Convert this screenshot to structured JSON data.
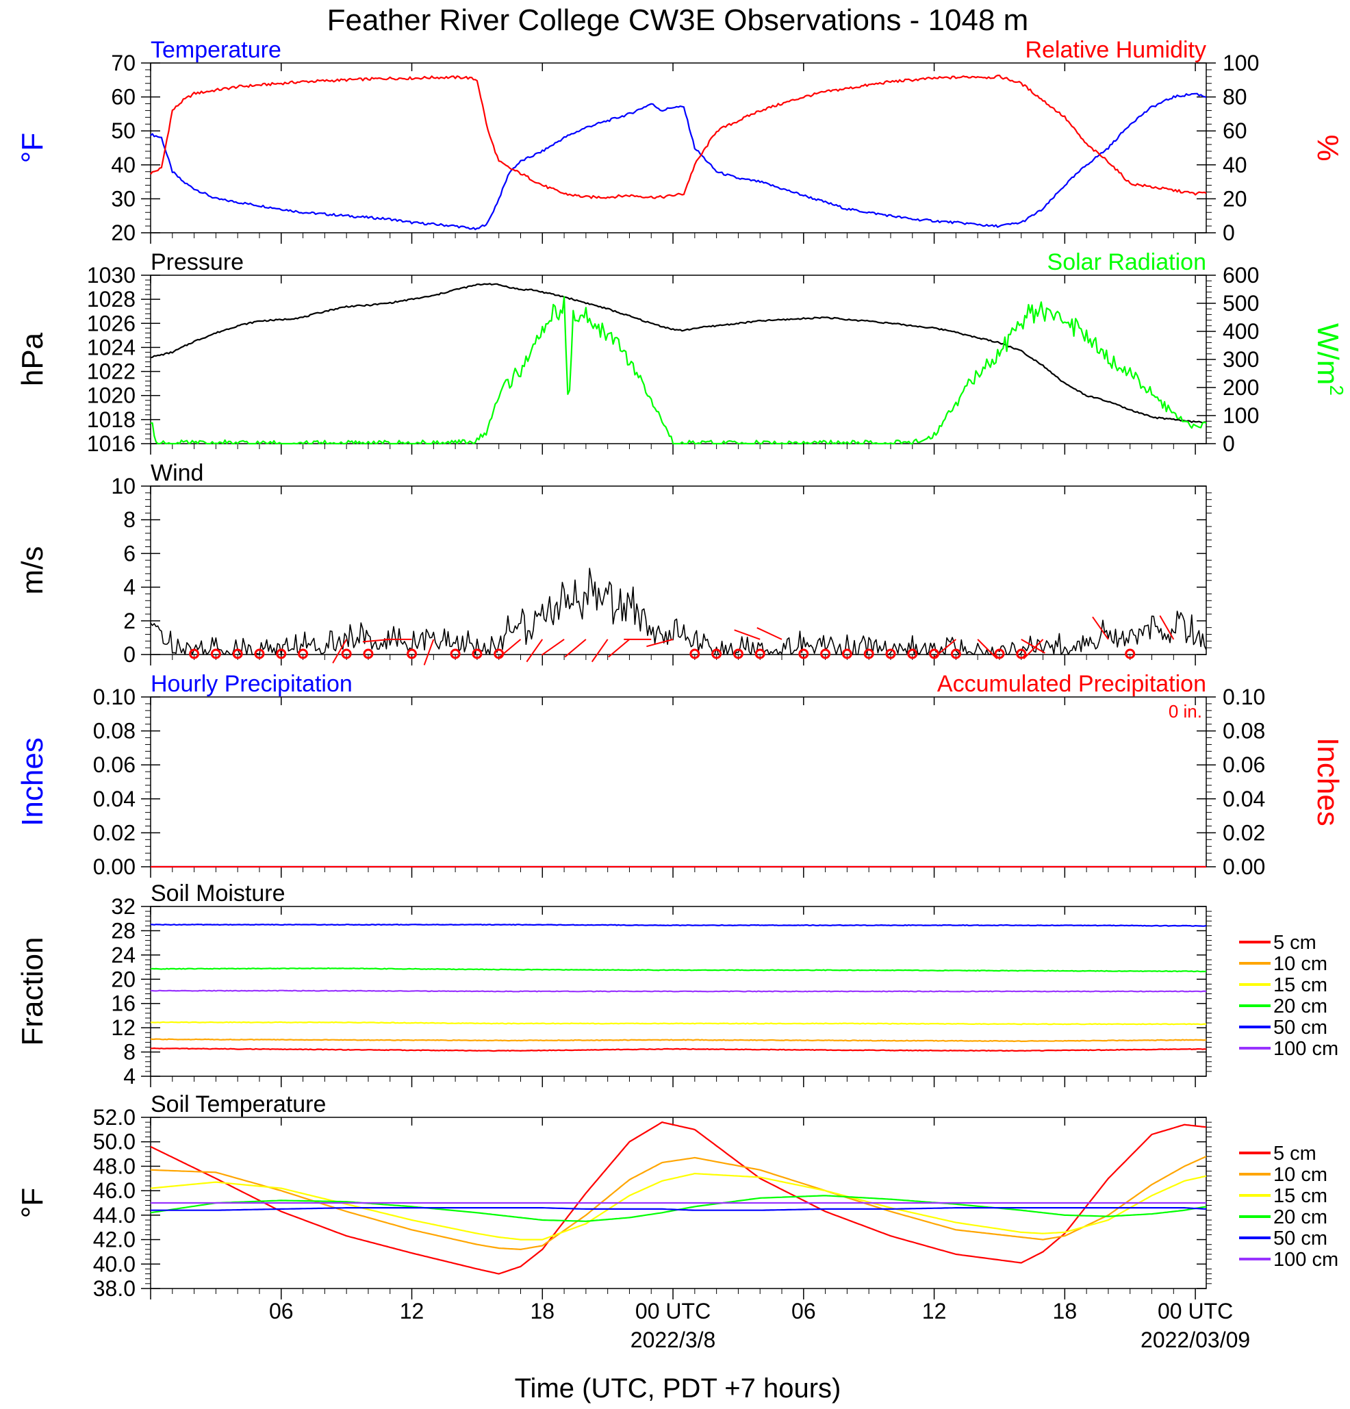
{
  "figure": {
    "title": "Feather River College CW3E Observations - 1048 m",
    "xlabel": "Time (UTC, PDT +7 hours)",
    "x_tick_labels": [
      "06",
      "12",
      "18",
      "00 UTC",
      "06",
      "12",
      "18",
      "00 UTC"
    ],
    "date_labels": [
      {
        "text": "2022/3/8",
        "under": "00 UTC #1"
      },
      {
        "text": "2022/03/09",
        "under": "00 UTC #2"
      }
    ]
  },
  "chart_data": [
    {
      "id": "temperature_rh",
      "type": "line",
      "titles": {
        "left": "Temperature",
        "right": "Relative Humidity"
      },
      "left_axis": {
        "label": "°F",
        "range": [
          20,
          70
        ],
        "ticks": [
          "20",
          "30",
          "40",
          "50",
          "60",
          "70"
        ],
        "color": "#0000ff"
      },
      "right_axis": {
        "label": "%",
        "range": [
          0,
          100
        ],
        "ticks": [
          "0",
          "20",
          "40",
          "60",
          "80",
          "100"
        ],
        "color": "#ff0000"
      },
      "x_hours_utc": [
        0,
        0.5,
        1,
        1.5,
        2,
        3,
        4,
        5,
        6,
        7,
        8,
        9,
        10,
        11,
        12,
        13,
        14,
        14.5,
        15,
        15.5,
        16,
        16.5,
        17,
        18,
        19,
        20,
        21,
        22,
        23,
        23.5,
        24,
        24.5,
        25,
        26,
        27,
        28,
        29,
        30,
        31,
        32,
        33,
        34,
        35,
        36,
        37,
        38,
        38.5,
        39,
        40,
        41,
        42,
        43,
        44,
        45,
        46,
        47,
        48,
        48.5
      ],
      "series": [
        {
          "name": "Temperature",
          "axis": "left",
          "color": "#0000ff",
          "values": [
            49,
            48,
            38,
            35,
            33,
            30,
            29,
            28,
            27,
            26,
            25.5,
            25,
            24.5,
            24,
            23,
            22.5,
            22,
            21.5,
            21,
            23,
            30,
            38,
            41,
            44,
            48,
            51,
            53,
            55,
            58,
            56,
            57,
            57,
            45,
            38,
            36,
            35,
            33,
            31,
            29,
            27,
            26,
            25,
            24,
            23.5,
            23,
            22.5,
            22,
            22,
            23,
            27,
            34,
            40,
            45,
            52,
            57,
            60,
            61,
            60
          ]
        },
        {
          "name": "Relative Humidity",
          "axis": "right",
          "color": "#ff0000",
          "values": [
            35,
            38,
            72,
            78,
            82,
            84,
            86,
            87,
            88,
            89,
            89.5,
            90,
            90.5,
            91,
            91,
            91.5,
            91.5,
            91.5,
            90,
            60,
            42,
            38,
            35,
            28,
            23,
            21,
            21,
            22,
            21,
            21,
            22,
            23,
            40,
            60,
            66,
            72,
            76,
            80,
            83,
            85,
            87,
            89,
            90,
            91,
            91.5,
            92,
            91.5,
            92,
            88,
            78,
            68,
            52,
            42,
            29,
            27,
            25,
            23,
            24
          ]
        }
      ]
    },
    {
      "id": "pressure_solar",
      "type": "line",
      "titles": {
        "left": "Pressure",
        "right": "Solar Radiation"
      },
      "left_axis": {
        "label": "hPa",
        "range": [
          1016,
          1030
        ],
        "ticks": [
          "1016",
          "1018",
          "1020",
          "1022",
          "1024",
          "1026",
          "1028",
          "1030"
        ],
        "color": "#000000"
      },
      "right_axis": {
        "label": "W/m",
        "label_sup": "2",
        "range": [
          0,
          600
        ],
        "ticks": [
          "0",
          "100",
          "200",
          "300",
          "400",
          "500",
          "600"
        ],
        "color": "#00ff00"
      },
      "x_hours_utc": [
        0,
        0.3,
        1,
        2,
        3,
        4,
        5,
        6,
        7,
        8,
        9,
        10,
        11,
        12,
        13,
        14,
        15,
        15.5,
        16,
        17,
        17.5,
        18,
        18.5,
        19,
        19.2,
        19.4,
        20,
        21,
        22,
        23,
        24,
        24.5,
        25,
        26,
        27,
        28,
        29,
        30,
        31,
        32,
        33,
        34,
        35,
        36,
        37,
        37.5,
        38,
        39,
        40,
        41,
        42,
        43,
        44,
        45,
        46,
        47,
        47.5,
        48,
        48.5
      ],
      "series": [
        {
          "name": "Pressure",
          "axis": "left",
          "color": "#000000",
          "values": [
            1023.2,
            1023.3,
            1023.6,
            1024.5,
            1025.2,
            1025.8,
            1026.2,
            1026.3,
            1026.5,
            1027,
            1027.4,
            1027.5,
            1027.7,
            1028,
            1028.3,
            1028.8,
            1029.2,
            1029.3,
            1029.2,
            1028.8,
            1028.8,
            1028.6,
            1028.4,
            1028.2,
            1028.1,
            1028,
            1027.7,
            1027.2,
            1026.6,
            1026,
            1025.5,
            1025.4,
            1025.6,
            1025.8,
            1026,
            1026.2,
            1026.3,
            1026.4,
            1026.5,
            1026.3,
            1026.2,
            1026,
            1025.8,
            1025.6,
            1025.3,
            1025,
            1024.8,
            1024.4,
            1023.7,
            1022.5,
            1021,
            1020,
            1019.5,
            1018.8,
            1018.2,
            1018,
            1017.9,
            1017.8,
            1017.8
          ]
        },
        {
          "name": "Solar Radiation",
          "axis": "right",
          "color": "#00ff00",
          "values": [
            80,
            0,
            0,
            0,
            0,
            0,
            0,
            0,
            0,
            0,
            0,
            0,
            0,
            0,
            0,
            0,
            10,
            50,
            180,
            260,
            330,
            400,
            460,
            480,
            100,
            460,
            450,
            400,
            300,
            150,
            0,
            0,
            0,
            0,
            0,
            0,
            0,
            0,
            0,
            0,
            0,
            0,
            0,
            30,
            150,
            200,
            250,
            320,
            450,
            470,
            440,
            380,
            300,
            250,
            180,
            100,
            80,
            60,
            80
          ]
        }
      ]
    },
    {
      "id": "wind",
      "type": "line",
      "titles": {
        "left": "Wind"
      },
      "left_axis": {
        "label": "m/s",
        "range": [
          0,
          10
        ],
        "ticks": [
          "0",
          "2",
          "4",
          "6",
          "8",
          "10"
        ],
        "color": "#000000"
      },
      "x_hours_utc": [
        0,
        1,
        2,
        3,
        4,
        5,
        6,
        7,
        8,
        9,
        10,
        11,
        12,
        13,
        14,
        15,
        15.5,
        16,
        16.5,
        17,
        17.5,
        18,
        19,
        20,
        21,
        22,
        23,
        24,
        25,
        26,
        27,
        28,
        29,
        30,
        31,
        32,
        33,
        34,
        35,
        36,
        37,
        38,
        39,
        40,
        41,
        42,
        43,
        44,
        45,
        46,
        47,
        48,
        48.5
      ],
      "series": [
        {
          "name": "Wind speed",
          "axis": "left",
          "color": "#000000",
          "values": [
            1.5,
            0.6,
            0.3,
            0.4,
            0.3,
            0.4,
            0.4,
            0.5,
            0.6,
            0.8,
            0.9,
            0.8,
            0.9,
            0.8,
            0.7,
            0.4,
            0.3,
            0.8,
            1.5,
            2,
            1.2,
            2.8,
            3.2,
            3.3,
            3.1,
            2.8,
            1.6,
            1.2,
            0.8,
            0.4,
            0.3,
            0.3,
            0.4,
            0.5,
            0.6,
            0.5,
            0.4,
            0.4,
            0.3,
            0.4,
            0.3,
            0.3,
            0.3,
            0.4,
            0.5,
            0.4,
            0.6,
            1.2,
            0.9,
            1.8,
            1.4,
            1.3,
            0.6
          ]
        }
      ],
      "barbs_hours_utc": [
        9,
        11,
        12,
        13,
        17,
        18,
        19,
        20,
        21,
        22,
        23,
        24,
        28,
        29,
        37,
        38,
        40,
        41,
        44,
        47
      ],
      "barb_directions_deg": [
        210,
        265,
        270,
        200,
        230,
        215,
        235,
        230,
        215,
        230,
        270,
        255,
        290,
        295,
        230,
        135,
        120,
        225,
        325,
        330
      ],
      "calm_hours_utc": [
        2,
        3,
        4,
        5,
        6,
        7,
        9,
        10,
        12,
        14,
        15,
        16,
        25,
        26,
        27,
        28,
        30,
        31,
        32,
        33,
        34,
        35,
        36,
        37,
        39,
        40,
        45
      ]
    },
    {
      "id": "precipitation",
      "type": "line",
      "titles": {
        "left": "Hourly Precipitation",
        "right": "Accumulated Precipitation"
      },
      "annotation": "0 in.",
      "left_axis": {
        "label": "Inches",
        "range": [
          0,
          0.1
        ],
        "ticks": [
          "0.00",
          "0.02",
          "0.04",
          "0.06",
          "0.08",
          "0.10"
        ],
        "color": "#0000ff"
      },
      "right_axis": {
        "label": "Inches",
        "range": [
          0,
          0.1
        ],
        "ticks": [
          "0.00",
          "0.02",
          "0.04",
          "0.06",
          "0.08",
          "0.10"
        ],
        "color": "#ff0000"
      },
      "x_hours_utc": [
        0,
        48.5
      ],
      "series": [
        {
          "name": "Hourly Precipitation",
          "axis": "left",
          "color": "#0000ff",
          "values": [
            0,
            0
          ]
        },
        {
          "name": "Accumulated Precipitation",
          "axis": "right",
          "color": "#ff0000",
          "values": [
            0,
            0
          ]
        }
      ]
    },
    {
      "id": "soil_moisture",
      "type": "line",
      "titles": {
        "left": "Soil Moisture"
      },
      "left_axis": {
        "label": "Fraction",
        "range": [
          4,
          32
        ],
        "ticks": [
          "4",
          "8",
          "12",
          "16",
          "20",
          "24",
          "28",
          "32"
        ],
        "color": "#000000"
      },
      "x_hours_utc": [
        0,
        8,
        16,
        24,
        32,
        40,
        48.5
      ],
      "legend": [
        "5 cm",
        "10 cm",
        "15 cm",
        "20 cm",
        "50 cm",
        "100 cm"
      ],
      "series": [
        {
          "name": "5 cm",
          "axis": "left",
          "color": "#ff0000",
          "values": [
            8.6,
            8.4,
            8.2,
            8.5,
            8.3,
            8.2,
            8.5
          ]
        },
        {
          "name": "10 cm",
          "axis": "left",
          "color": "#ffa500",
          "values": [
            10.1,
            10,
            9.9,
            10,
            9.9,
            9.8,
            10
          ]
        },
        {
          "name": "15 cm",
          "axis": "left",
          "color": "#ffff00",
          "values": [
            12.9,
            12.9,
            12.7,
            12.7,
            12.7,
            12.6,
            12.6
          ]
        },
        {
          "name": "20 cm",
          "axis": "left",
          "color": "#00ff00",
          "values": [
            21.7,
            21.8,
            21.6,
            21.5,
            21.5,
            21.4,
            21.3
          ]
        },
        {
          "name": "50 cm",
          "axis": "left",
          "color": "#0000ff",
          "values": [
            29,
            29,
            29,
            28.9,
            28.9,
            28.9,
            28.8
          ]
        },
        {
          "name": "100 cm",
          "axis": "left",
          "color": "#9933ff",
          "values": [
            18.1,
            18.1,
            18,
            18,
            18,
            18,
            18
          ]
        }
      ]
    },
    {
      "id": "soil_temperature",
      "type": "line",
      "titles": {
        "left": "Soil Temperature"
      },
      "left_axis": {
        "label": "°F",
        "range": [
          38,
          52
        ],
        "ticks": [
          "38.0",
          "40.0",
          "42.0",
          "44.0",
          "46.0",
          "48.0",
          "50.0",
          "52.0"
        ],
        "color": "#000000"
      },
      "x_hours_utc": [
        0,
        3,
        6,
        9,
        12,
        15,
        16,
        17,
        18,
        20,
        22,
        23.5,
        25,
        28,
        31,
        34,
        37,
        40,
        41,
        42,
        44,
        46,
        47.5,
        48.5
      ],
      "legend": [
        "5 cm",
        "10 cm",
        "15 cm",
        "20 cm",
        "50 cm",
        "100 cm"
      ],
      "series": [
        {
          "name": "5 cm",
          "axis": "left",
          "color": "#ff0000",
          "values": [
            49.6,
            47,
            44.3,
            42.3,
            40.9,
            39.6,
            39.2,
            39.8,
            41.2,
            45.8,
            50,
            51.6,
            51,
            47,
            44.3,
            42.3,
            40.8,
            40.1,
            41,
            42.5,
            47,
            50.6,
            51.4,
            51.2
          ]
        },
        {
          "name": "10 cm",
          "axis": "left",
          "color": "#ffa500",
          "values": [
            47.7,
            47.5,
            46,
            44.3,
            42.8,
            41.6,
            41.3,
            41.2,
            41.5,
            44,
            46.9,
            48.3,
            48.7,
            47.7,
            46,
            44.3,
            42.8,
            42.2,
            42,
            42.3,
            44,
            46.5,
            48,
            48.8
          ]
        },
        {
          "name": "15 cm",
          "axis": "left",
          "color": "#ffff00",
          "values": [
            46.2,
            46.7,
            46.2,
            44.9,
            43.6,
            42.5,
            42.2,
            42,
            42,
            43.3,
            45.6,
            46.8,
            47.4,
            47.1,
            46,
            44.6,
            43.4,
            42.6,
            42.5,
            42.6,
            43.6,
            45.6,
            46.8,
            47.2
          ]
        },
        {
          "name": "20 cm",
          "axis": "left",
          "color": "#00ff00",
          "values": [
            44.2,
            45,
            45.2,
            45.1,
            44.7,
            44.2,
            44,
            43.8,
            43.6,
            43.5,
            43.8,
            44.2,
            44.7,
            45.4,
            45.6,
            45.3,
            44.9,
            44.4,
            44.2,
            44,
            43.9,
            44.1,
            44.4,
            44.7
          ]
        },
        {
          "name": "50 cm",
          "axis": "left",
          "color": "#0000ff",
          "values": [
            44.4,
            44.4,
            44.5,
            44.6,
            44.6,
            44.6,
            44.6,
            44.6,
            44.6,
            44.5,
            44.5,
            44.5,
            44.4,
            44.4,
            44.5,
            44.5,
            44.6,
            44.6,
            44.6,
            44.6,
            44.6,
            44.6,
            44.6,
            44.5
          ]
        },
        {
          "name": "100 cm",
          "axis": "left",
          "color": "#9933ff",
          "values": [
            45,
            45,
            45,
            45,
            45,
            45,
            45,
            45,
            45,
            45,
            45,
            45,
            45,
            45,
            45,
            45,
            45,
            45,
            45,
            45,
            45,
            45,
            45,
            45
          ]
        }
      ]
    }
  ]
}
